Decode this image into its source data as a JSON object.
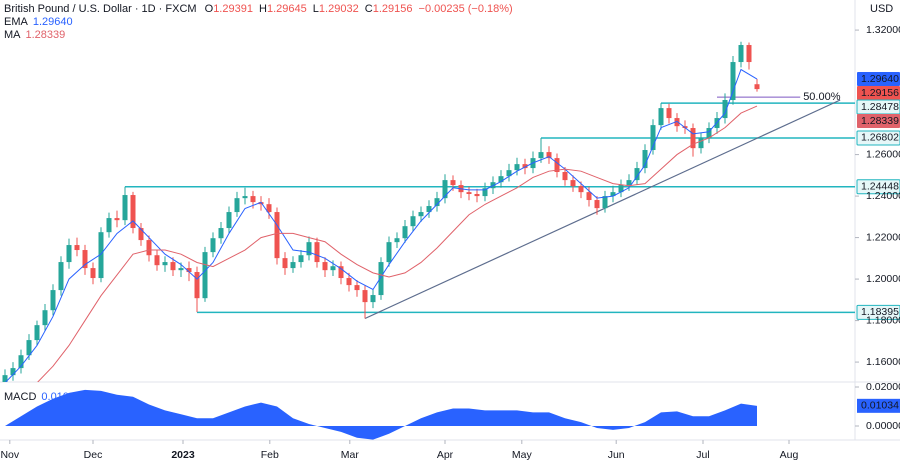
{
  "chart_data": {
    "type": "candlestick",
    "title": "British Pound / U.S. Dollar · 1D · FXCM",
    "quote_labels": [
      "O",
      "H",
      "L",
      "C"
    ],
    "change": "−0.00235 (−0.18%)",
    "currency": "USD",
    "xlim": [
      -0.625,
      106.25
    ],
    "xticks": [
      {
        "value": 0.6,
        "label": "Nov"
      },
      {
        "value": 11,
        "label": "Dec"
      },
      {
        "value": 22.25,
        "label": "2023"
      },
      {
        "value": 33.1,
        "label": "Feb"
      },
      {
        "value": 43.1,
        "label": "Mar"
      },
      {
        "value": 55,
        "label": "Apr"
      },
      {
        "value": 64.6,
        "label": "May"
      },
      {
        "value": 76.4,
        "label": "Jun"
      },
      {
        "value": 87.25,
        "label": "Jul"
      },
      {
        "value": 98,
        "label": "Aug"
      }
    ],
    "ylim": [
      1.1504,
      1.3345
    ],
    "yticks": [
      {
        "value": 1.32,
        "label": "1.32000"
      },
      {
        "value": 1.26,
        "label": "1.26000"
      },
      {
        "value": 1.24,
        "label": "1.24000"
      },
      {
        "value": 1.22,
        "label": "1.22000"
      },
      {
        "value": 1.2,
        "label": "1.20000"
      },
      {
        "value": 1.18,
        "label": "1.18000"
      },
      {
        "value": 1.16,
        "label": "1.16000"
      }
    ],
    "ohlc": {
      "up_color": "#26a69a",
      "down_color": "#ef5350",
      "open": [
        1.15,
        1.1537,
        1.1571,
        1.1633,
        1.1706,
        1.1778,
        1.185,
        1.1947,
        1.2082,
        1.2164,
        1.214,
        1.2053,
        1.2005,
        1.2226,
        1.2294,
        1.2284,
        1.2405,
        1.2246,
        1.2188,
        1.2115,
        1.2067,
        1.2082,
        1.2043,
        1.2053,
        1.2034,
        1.1908,
        1.213,
        1.2197,
        1.2246,
        1.2323,
        1.239,
        1.24,
        1.2371,
        1.2361,
        1.2323,
        1.2101,
        1.2053,
        1.2082,
        1.2115,
        1.2178,
        1.2082,
        1.2043,
        1.2062,
        1.2005,
        1.1971,
        1.1947,
        1.1889,
        1.1923,
        1.2082,
        1.2178,
        1.2197,
        1.2255,
        1.2303,
        1.2323,
        1.2352,
        1.239,
        1.2477,
        1.2453,
        1.2419,
        1.241,
        1.24,
        1.2438,
        1.2467,
        1.2496,
        1.2525,
        1.2554,
        1.2535,
        1.2583,
        1.2612,
        1.2583,
        1.2516,
        1.2477,
        1.2448,
        1.2419,
        1.2381,
        1.2342,
        1.24,
        1.2419,
        1.2453,
        1.2477,
        1.2535,
        1.2622,
        1.2742,
        1.2824,
        1.2776,
        1.2737,
        1.2728,
        1.2631,
        1.2679,
        1.2728,
        1.2776,
        1.2863,
        1.3046,
        1.3128,
        1.29391
      ],
      "high": [
        1.1565,
        1.16,
        1.166,
        1.1735,
        1.18,
        1.188,
        1.1975,
        1.211,
        1.2195,
        1.22,
        1.2165,
        1.208,
        1.225,
        1.232,
        1.233,
        1.2445,
        1.242,
        1.227,
        1.221,
        1.214,
        1.211,
        1.2105,
        1.208,
        1.2085,
        1.206,
        1.2155,
        1.2225,
        1.2275,
        1.235,
        1.242,
        1.244,
        1.2425,
        1.24,
        1.239,
        1.2345,
        1.213,
        1.211,
        1.214,
        1.2205,
        1.22,
        1.2105,
        1.209,
        1.2085,
        1.203,
        1.1995,
        1.197,
        1.195,
        1.2105,
        1.2205,
        1.2225,
        1.2285,
        1.233,
        1.235,
        1.238,
        1.242,
        1.2505,
        1.25,
        1.2475,
        1.2445,
        1.2435,
        1.2465,
        1.2495,
        1.2525,
        1.2555,
        1.2585,
        1.258,
        1.2615,
        1.268,
        1.264,
        1.2605,
        1.254,
        1.25,
        1.247,
        1.2445,
        1.24,
        1.2425,
        1.245,
        1.248,
        1.2505,
        1.2565,
        1.265,
        1.277,
        1.2848,
        1.2845,
        1.28,
        1.2765,
        1.275,
        1.2705,
        1.2755,
        1.2805,
        1.2895,
        1.3075,
        1.3144,
        1.314,
        1.29645
      ],
      "low": [
        1.147,
        1.151,
        1.1545,
        1.161,
        1.168,
        1.175,
        1.1825,
        1.192,
        1.205,
        1.211,
        1.202,
        1.1975,
        1.1985,
        1.22,
        1.225,
        1.226,
        1.222,
        1.216,
        1.2085,
        1.204,
        1.2035,
        1.2015,
        1.201,
        1.199,
        1.1841,
        1.189,
        1.2105,
        1.217,
        1.222,
        1.23,
        1.236,
        1.234,
        1.233,
        1.229,
        1.207,
        1.202,
        1.203,
        1.2055,
        1.209,
        1.2055,
        1.201,
        1.2015,
        1.1975,
        1.194,
        1.1915,
        1.181,
        1.186,
        1.19,
        1.206,
        1.215,
        1.2175,
        1.223,
        1.2275,
        1.2295,
        1.2325,
        1.2365,
        1.2425,
        1.239,
        1.238,
        1.237,
        1.2375,
        1.241,
        1.244,
        1.247,
        1.25,
        1.2505,
        1.251,
        1.256,
        1.2555,
        1.249,
        1.245,
        1.242,
        1.239,
        1.235,
        1.231,
        1.232,
        1.237,
        1.2395,
        1.2425,
        1.2455,
        1.251,
        1.26,
        1.272,
        1.275,
        1.271,
        1.27,
        1.259,
        1.2605,
        1.2655,
        1.27,
        1.275,
        1.284,
        1.302,
        1.301,
        1.29032
      ],
      "close": [
        1.1537,
        1.1571,
        1.1633,
        1.1706,
        1.1778,
        1.185,
        1.1947,
        1.2082,
        1.2164,
        1.214,
        1.2053,
        1.2005,
        1.2226,
        1.2294,
        1.2284,
        1.2405,
        1.2246,
        1.2188,
        1.2115,
        1.2067,
        1.2082,
        1.2043,
        1.2053,
        1.2034,
        1.1908,
        1.213,
        1.2197,
        1.2246,
        1.2323,
        1.239,
        1.24,
        1.2371,
        1.2361,
        1.2323,
        1.2101,
        1.2053,
        1.2082,
        1.2115,
        1.2178,
        1.2082,
        1.2043,
        1.2062,
        1.2005,
        1.1971,
        1.1947,
        1.1889,
        1.1923,
        1.2082,
        1.2178,
        1.2197,
        1.2255,
        1.2303,
        1.2323,
        1.2352,
        1.239,
        1.2477,
        1.2453,
        1.2419,
        1.241,
        1.24,
        1.2438,
        1.2467,
        1.2496,
        1.2525,
        1.2554,
        1.2535,
        1.2583,
        1.2612,
        1.2583,
        1.2516,
        1.2477,
        1.2448,
        1.2419,
        1.2381,
        1.2342,
        1.24,
        1.2419,
        1.2453,
        1.2477,
        1.2535,
        1.2622,
        1.2742,
        1.2824,
        1.2776,
        1.2737,
        1.2728,
        1.2631,
        1.2679,
        1.2728,
        1.2776,
        1.2863,
        1.3046,
        1.3128,
        1.3046,
        1.29156
      ]
    },
    "indicator_x": [
      0,
      2,
      4,
      6,
      8,
      10,
      12,
      14,
      16,
      18,
      20,
      22,
      24,
      26,
      28,
      30,
      32,
      34,
      36,
      38,
      40,
      42,
      44,
      46,
      48,
      50,
      52,
      54,
      56,
      58,
      60,
      62,
      64,
      66,
      68,
      70,
      72,
      74,
      76,
      78,
      80,
      82,
      84,
      86,
      88,
      90,
      92,
      94
    ],
    "series": [
      {
        "name": "EMA",
        "color": "#2962ff",
        "last_label": "1.29640",
        "values": [
          1.15,
          1.158,
          1.168,
          1.182,
          1.2,
          1.207,
          1.212,
          1.222,
          1.228,
          1.22,
          1.212,
          1.207,
          1.2,
          1.208,
          1.222,
          1.234,
          1.237,
          1.226,
          1.214,
          1.213,
          1.21,
          1.205,
          1.199,
          1.195,
          1.207,
          1.218,
          1.228,
          1.236,
          1.244,
          1.243,
          1.243,
          1.247,
          1.252,
          1.256,
          1.259,
          1.253,
          1.246,
          1.239,
          1.24,
          1.244,
          1.255,
          1.273,
          1.276,
          1.27,
          1.271,
          1.28,
          1.301,
          1.2964
        ]
      },
      {
        "name": "MA",
        "color": "#e0626a",
        "values": [
          null,
          null,
          1.15,
          1.158,
          1.168,
          1.18,
          1.192,
          1.202,
          1.212,
          1.214,
          1.214,
          1.212,
          1.208,
          1.206,
          1.21,
          1.214,
          1.22,
          1.222,
          1.222,
          1.22,
          1.218,
          1.212,
          1.207,
          1.203,
          1.201,
          1.203,
          1.208,
          1.215,
          1.223,
          1.231,
          1.236,
          1.24,
          1.244,
          1.249,
          1.252,
          1.253,
          1.252,
          1.249,
          1.246,
          1.245,
          1.246,
          1.253,
          1.26,
          1.265,
          1.268,
          1.273,
          1.28,
          1.28339
        ]
      }
    ],
    "level_color": "#22b5bf",
    "levels": [
      {
        "value": 1.28478,
        "from": 82
      },
      {
        "value": 1.26802,
        "from": 67
      },
      {
        "value": 1.24448,
        "from": 15
      },
      {
        "value": 1.18395,
        "from": 24
      }
    ],
    "trendline": {
      "color": "#5d6d8e",
      "x": [
        45,
        104.4
      ],
      "values": [
        1.181,
        1.2863
      ]
    },
    "fib": {
      "label": "50.00%",
      "color": "#7e57c2",
      "value": 1.2877,
      "from": 89,
      "to": 99.4
    },
    "macd": {
      "name": "MACD",
      "color": "#2962ff",
      "y2lim": [
        -0.00718,
        0.02256
      ],
      "y2ticks": [
        {
          "value": 0.02,
          "label": "0.02000"
        },
        {
          "value": 0,
          "label": "0.00000"
        }
      ],
      "values": [
        0,
        0.005,
        0.01,
        0.014,
        0.017,
        0.0185,
        0.018,
        0.016,
        0.015,
        0.011,
        0.008,
        0.006,
        0.004,
        0.004,
        0.007,
        0.01,
        0.012,
        0.01,
        0.004,
        0.001,
        -0.001,
        -0.003,
        -0.006,
        -0.007,
        -0.004,
        0,
        0.004,
        0.007,
        0.009,
        0.009,
        0.008,
        0.008,
        0.008,
        0.007,
        0.007,
        0.004,
        0.002,
        -0.001,
        -0.002,
        -0.001,
        0.002,
        0.007,
        0.0075,
        0.005,
        0.005,
        0.008,
        0.0115,
        0.01034
      ]
    }
  }
}
